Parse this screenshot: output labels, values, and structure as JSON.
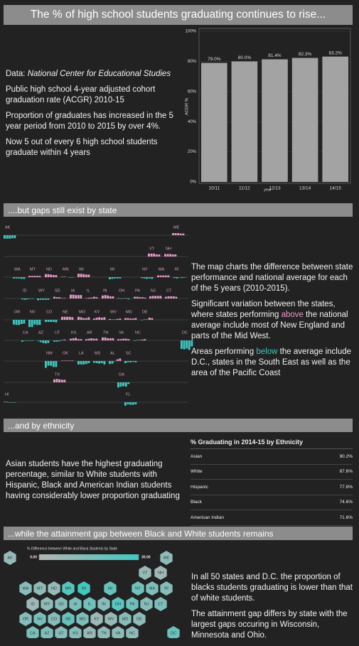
{
  "intro": {
    "title": "The % of  high school students graduating  continues to rise...",
    "source_label": "Data:",
    "source": "National Center for Educational Studies",
    "paragraphs": [
      "Public high school 4-year adjusted cohort graduation rate (ACGR) 2010-15",
      "Proportion of graduates has increased in the 5 year period from 2010 to 2015 by over 4%.",
      "Now 5 out of every 6 high school students graduate within 4 years"
    ]
  },
  "states_section": {
    "title": "....but gaps still exist by state",
    "paragraph_1": "The map charts the difference between state performance and national average for each of the 5 years (2010-2015).",
    "paragraph_2": [
      "Significant variation between the states, where states performing ",
      "above",
      " the national average include most of New England and parts of the Mid West."
    ],
    "paragraph_3": [
      "Areas performing ",
      "below",
      " the average include D.C., states in the South East as well as the area of the Pacific Coast"
    ]
  },
  "ethnicity_section": {
    "title": "...and by ethnicity",
    "paragraph": "Asian students have the highest graduating percentage, similar to White students with Hispanic, Black and American Indian students having considerably lower proportion graduating",
    "table": {
      "title": "% Graduating in 2014-15 by Ethnicity",
      "rows": [
        [
          "Asian",
          "90.2%"
        ],
        [
          "White",
          "87.6%"
        ],
        [
          "Hispanic",
          "77.8%"
        ],
        [
          "Black",
          "74.6%"
        ],
        [
          "American Indian",
          "71.6%"
        ]
      ]
    }
  },
  "gap_section": {
    "title": "...while the attainment gap between Black and White students remains",
    "paragraphs": [
      "In all 50 states and D.C. the proportion of blacks students graduating is lower than that of white students.",
      "The  attainment gap differs by state with the largest gaps occuring in Wisconsin, Minnesota and Ohio."
    ]
  },
  "chart_data": [
    {
      "type": "bar",
      "categories": [
        "10/11",
        "11/12",
        "12/13",
        "13/14",
        "14/15"
      ],
      "values": [
        79.0,
        80.0,
        81.4,
        82.3,
        83.2
      ],
      "value_labels": [
        "79.0%",
        "80.0%",
        "81.4%",
        "82.3%",
        "83.2%"
      ],
      "color": "#a3a3a3",
      "ylabel": "ACGR %",
      "xlabel": "year",
      "ylim": [
        0,
        100
      ],
      "yticks": [
        {
          "value": 0,
          "label": "0%"
        },
        {
          "value": 20,
          "label": "20%"
        },
        {
          "value": 40,
          "label": "40%"
        },
        {
          "value": 60,
          "label": "60%"
        },
        {
          "value": 80,
          "label": "80%"
        },
        {
          "value": 100,
          "label": "100%"
        }
      ],
      "grid": true
    },
    {
      "type": "tilemap",
      "positive_color": "#e49ac9",
      "negative_color": "#3fc8c0",
      "ylim": [
        -25,
        25
      ],
      "series": [
        {
          "name": "AK",
          "values": [
            -8,
            -8,
            -8,
            -7,
            -7
          ]
        },
        {
          "name": "ME",
          "values": [
            5,
            5,
            5,
            4,
            4
          ]
        },
        {
          "name": "VT",
          "values": [
            7,
            7,
            7,
            5,
            5
          ]
        },
        {
          "name": "NH",
          "values": [
            6,
            6,
            6,
            5,
            5
          ]
        },
        {
          "name": "WA",
          "values": [
            -3,
            -3,
            -3,
            -4,
            -4
          ]
        },
        {
          "name": "MT",
          "values": [
            3,
            3,
            3,
            3,
            3
          ]
        },
        {
          "name": "ND",
          "values": [
            7,
            7,
            6,
            5,
            5
          ]
        },
        {
          "name": "MN",
          "values": [
            1,
            1,
            0,
            -1,
            -1
          ]
        },
        {
          "name": "WI",
          "values": [
            8,
            8,
            7,
            6,
            6
          ]
        },
        {
          "name": "MI",
          "values": [
            -5,
            -4,
            -3,
            -3,
            -3
          ]
        },
        {
          "name": "NY",
          "values": [
            -2,
            -3,
            -4,
            -3,
            -4
          ]
        },
        {
          "name": "MA",
          "values": [
            4,
            4,
            4,
            4,
            4
          ]
        },
        {
          "name": "RI",
          "values": [
            -2,
            -3,
            -1,
            -2,
            -1
          ]
        },
        {
          "name": "ID",
          "values": [
            -2,
            -3,
            -2,
            -1,
            -1
          ]
        },
        {
          "name": "WY",
          "values": [
            -4,
            -3,
            -3,
            -3,
            -3
          ]
        },
        {
          "name": "SD",
          "values": [
            4,
            3,
            3,
            1,
            1
          ]
        },
        {
          "name": "IA",
          "values": [
            9,
            9,
            8,
            8,
            8
          ]
        },
        {
          "name": "IL",
          "values": [
            1,
            2,
            2,
            4,
            3
          ]
        },
        {
          "name": "IN",
          "values": [
            7,
            8,
            7,
            5,
            5
          ]
        },
        {
          "name": "OH",
          "values": [
            1,
            -1,
            -1,
            1,
            -2
          ]
        },
        {
          "name": "PA",
          "values": [
            4,
            4,
            3,
            3,
            2
          ]
        },
        {
          "name": "NJ",
          "values": [
            5,
            6,
            6,
            6,
            6
          ]
        },
        {
          "name": "CT",
          "values": [
            4,
            5,
            5,
            5,
            4
          ]
        },
        {
          "name": "OR",
          "values": [
            -11,
            -12,
            -12,
            -10,
            -9
          ]
        },
        {
          "name": "NV",
          "values": [
            -17,
            -17,
            -11,
            -12,
            -12
          ]
        },
        {
          "name": "CO",
          "values": [
            -5,
            -5,
            -5,
            -5,
            -6
          ]
        },
        {
          "name": "NE",
          "values": [
            7,
            7,
            7,
            7,
            6
          ]
        },
        {
          "name": "MO",
          "values": [
            7,
            6,
            4,
            4,
            6
          ]
        },
        {
          "name": "KY",
          "values": [
            3,
            5,
            6,
            5,
            6
          ]
        },
        {
          "name": "WV",
          "values": [
            2,
            1,
            1,
            2,
            3
          ]
        },
        {
          "name": "MD",
          "values": [
            4,
            4,
            3,
            3,
            4
          ]
        },
        {
          "name": "DE",
          "values": [
            -1,
            1,
            1,
            5,
            4
          ]
        },
        {
          "name": "CA",
          "values": [
            -3,
            -1,
            -1,
            -1,
            -1
          ]
        },
        {
          "name": "AZ",
          "values": [
            -1,
            -4,
            -6,
            -7,
            -6
          ]
        },
        {
          "name": "UT",
          "values": [
            -3,
            -3,
            -2,
            1,
            2
          ]
        },
        {
          "name": "KS",
          "values": [
            4,
            5,
            6,
            3,
            3
          ]
        },
        {
          "name": "AR",
          "values": [
            3,
            4,
            5,
            4,
            4
          ]
        },
        {
          "name": "TN",
          "values": [
            7,
            7,
            5,
            5,
            5
          ]
        },
        {
          "name": "VA",
          "values": [
            3,
            3,
            4,
            4,
            3
          ]
        },
        {
          "name": "NC",
          "values": [
            -1,
            1,
            1,
            2,
            3
          ]
        },
        {
          "name": "DC",
          "values": [
            -20,
            -21,
            -19,
            -22,
            -14
          ]
        },
        {
          "name": "NM",
          "values": [
            -16,
            -11,
            -11,
            -14,
            -14
          ]
        },
        {
          "name": "OK",
          "values": [
            1,
            1,
            1,
            1,
            1
          ]
        },
        {
          "name": "LA",
          "values": [
            -8,
            -8,
            -8,
            -7,
            -5
          ]
        },
        {
          "name": "MS",
          "values": [
            -4,
            -5,
            -6,
            -5,
            -8
          ]
        },
        {
          "name": "AL",
          "values": [
            -7,
            -6,
            -1,
            4,
            6
          ]
        },
        {
          "name": "SC",
          "values": [
            -5,
            -3,
            -3,
            -2,
            -3
          ]
        },
        {
          "name": "TX",
          "values": [
            7,
            8,
            7,
            6,
            6
          ]
        },
        {
          "name": "GA",
          "values": [
            -12,
            -10,
            -9,
            -10,
            -4
          ]
        },
        {
          "name": "HI",
          "values": [
            1,
            1,
            -1,
            -1,
            -1
          ]
        },
        {
          "name": "FL",
          "values": [
            -8,
            -5,
            -6,
            -6,
            -5
          ]
        }
      ]
    },
    {
      "type": "hexmap",
      "title": "% Difference between White and Black Students by State",
      "colors": [
        "#b4b4b4",
        "#41c9c0"
      ],
      "clim": [
        0,
        30
      ],
      "cticks": [
        {
          "value": 0,
          "label": "0.00"
        },
        {
          "value": 30,
          "label": "30.00"
        }
      ],
      "categories": [
        "AK",
        "ME",
        "VT",
        "NH",
        "WA",
        "MT",
        "ND",
        "MN",
        "WI",
        "MI",
        "NY",
        "MA",
        "RI",
        "ID",
        "WY",
        "SD",
        "IA",
        "IL",
        "IN",
        "OH",
        "PA",
        "NJ",
        "CT",
        "OR",
        "NV",
        "CO",
        "NE",
        "MO",
        "KY",
        "WV",
        "MD",
        "DE",
        "CA",
        "AZ",
        "UT",
        "KS",
        "AR",
        "TN",
        "VA",
        "NC",
        "DC"
      ],
      "values": [
        8,
        10,
        8,
        6,
        12,
        10,
        8,
        25,
        30,
        20,
        18,
        14,
        12,
        6,
        10,
        12,
        14,
        18,
        12,
        24,
        18,
        12,
        14,
        12,
        16,
        12,
        20,
        14,
        6,
        8,
        12,
        10,
        16,
        14,
        12,
        12,
        8,
        10,
        10,
        10,
        20
      ]
    }
  ]
}
